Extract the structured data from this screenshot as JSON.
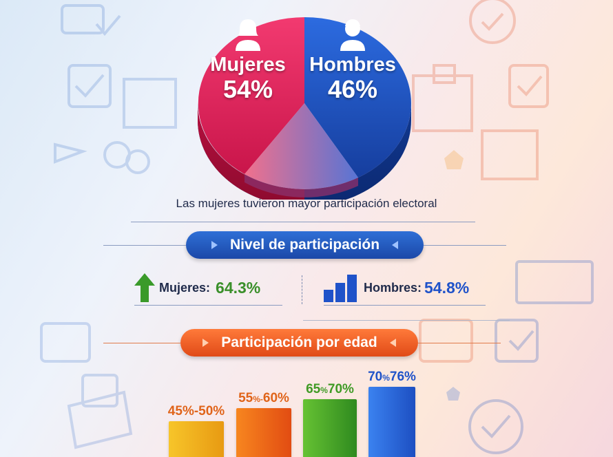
{
  "pie": {
    "women_label": "Mujeres",
    "women_value": "54%",
    "men_label": "Hombres",
    "men_value": "46%"
  },
  "subtitle": "Las mujeres tuvieron mayor participación electoral",
  "participation": {
    "heading": "Nivel de participación",
    "women_label": "Mujeres:",
    "women_value": "64.3%",
    "men_label": "Hombres:",
    "men_value": "54.8%"
  },
  "age": {
    "heading": "Participación por edad",
    "bars": [
      {
        "label_a": "45",
        "sep": "%-",
        "label_b": "50%"
      },
      {
        "label_a": "55",
        "sep": "%-",
        "label_b": "60%"
      },
      {
        "label_a": "65",
        "sep": "%",
        "label_b": "70%"
      },
      {
        "label_a": "70",
        "sep": "%",
        "label_b": "76%"
      }
    ]
  },
  "colors": {
    "women": "#e8285f",
    "men": "#1f52c9",
    "green": "#3a8f2a",
    "bar_colors": [
      "#f2b41c",
      "#f26b1a",
      "#4fae2e",
      "#2d6ee0"
    ],
    "label_colors": [
      "#e0641a",
      "#e0641a",
      "#3f9a25",
      "#1f52c9"
    ]
  },
  "chart_data": [
    {
      "type": "pie",
      "categories": [
        "Mujeres",
        "Hombres"
      ],
      "values": [
        54,
        46
      ],
      "title": ""
    },
    {
      "type": "bar",
      "title": "Nivel de participación",
      "categories": [
        "Mujeres",
        "Hombres"
      ],
      "values": [
        64.3,
        54.8
      ]
    },
    {
      "type": "bar",
      "title": "Participación por edad",
      "categories": [
        "45%-50%",
        "55%-60%",
        "65%70%",
        "70%76%"
      ],
      "ranges": [
        [
          45,
          50
        ],
        [
          55,
          60
        ],
        [
          65,
          70
        ],
        [
          70,
          76
        ]
      ]
    }
  ]
}
